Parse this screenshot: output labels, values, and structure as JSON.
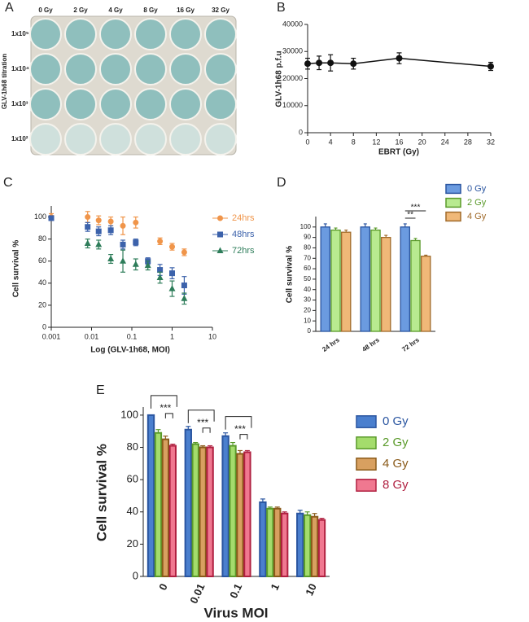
{
  "plate": {
    "panel_label": "A",
    "columns": [
      "0 Gy",
      "2 Gy",
      "4 Gy",
      "8 Gy",
      "16 Gy",
      "32 Gy"
    ],
    "rows": [
      "1x10⁵",
      "1x10⁴",
      "1x10³",
      "1x10²"
    ],
    "side_label": "GLV-1h68 titration"
  },
  "chart_data": [
    {
      "type": "line",
      "panel_label": "B",
      "x": [
        0,
        2,
        4,
        8,
        16,
        32
      ],
      "series": [
        {
          "color": "#111111",
          "values": [
            25500,
            25800,
            25800,
            25500,
            27500,
            24500
          ],
          "errors": [
            2000,
            2500,
            3000,
            2000,
            2000,
            1500
          ]
        }
      ],
      "xlim": [
        0,
        32
      ],
      "xticks": [
        0,
        4,
        8,
        12,
        16,
        20,
        24,
        28,
        32
      ],
      "ylim": [
        0,
        40000
      ],
      "yticks": [
        0,
        10000,
        20000,
        30000,
        40000
      ],
      "xlabel": "EBRT (Gy)",
      "ylabel": "GLV-1h68 p.f.u"
    },
    {
      "type": "scatter",
      "panel_label": "C",
      "xscale": "log",
      "xlim": [
        0.001,
        10
      ],
      "xticks": [
        0.001,
        0.01,
        0.1,
        1,
        10
      ],
      "ylim": [
        0,
        110
      ],
      "yticks": [
        0,
        20,
        40,
        60,
        80,
        100
      ],
      "xlabel": "Log (GLV-1h68, MOI)",
      "ylabel": "Cell survival %",
      "series": [
        {
          "name": "24hrs",
          "color": "#f0954a",
          "marker": "circle",
          "x": [
            0.001,
            0.008,
            0.015,
            0.03,
            0.06,
            0.125,
            0.5,
            1,
            2
          ],
          "values": [
            100,
            100,
            97,
            96,
            92,
            95,
            78,
            73,
            68
          ],
          "errors": [
            3,
            5,
            4,
            4,
            8,
            5,
            3,
            3,
            3
          ]
        },
        {
          "name": "48hrs",
          "color": "#3c62ab",
          "marker": "square",
          "x": [
            0.001,
            0.008,
            0.015,
            0.03,
            0.06,
            0.125,
            0.25,
            0.5,
            1,
            2
          ],
          "values": [
            99,
            91,
            87,
            88,
            75,
            77,
            60,
            52,
            49,
            38
          ],
          "errors": [
            2,
            4,
            4,
            4,
            4,
            3,
            3,
            5,
            5,
            8
          ]
        },
        {
          "name": "72hrs",
          "color": "#2e7d5a",
          "marker": "triangle",
          "x": [
            0.008,
            0.015,
            0.03,
            0.06,
            0.125,
            0.25,
            0.5,
            1,
            2
          ],
          "values": [
            76,
            75,
            62,
            60,
            57,
            56,
            45,
            35,
            26
          ],
          "errors": [
            4,
            4,
            4,
            10,
            5,
            4,
            5,
            7,
            5
          ]
        }
      ]
    },
    {
      "type": "bar",
      "panel_label": "D",
      "categories": [
        "24 hrs",
        "48 hrs",
        "72 hrs"
      ],
      "ylim": [
        0,
        110
      ],
      "yticks": [
        0,
        10,
        20,
        30,
        40,
        50,
        60,
        70,
        80,
        90,
        100
      ],
      "ylabel": "Cell survival %",
      "series": [
        {
          "name": "0 Gy",
          "color": "#6b9be0",
          "edge_color": "#2a55a0",
          "values": [
            100,
            100,
            100
          ],
          "errors": [
            3,
            3,
            3
          ]
        },
        {
          "name": "2 Gy",
          "color": "#b8ea90",
          "edge_color": "#5a9a2a",
          "values": [
            97,
            97,
            87
          ],
          "errors": [
            2,
            2,
            2
          ]
        },
        {
          "name": "4 Gy",
          "color": "#f0b878",
          "edge_color": "#a06a2a",
          "values": [
            95,
            90,
            72
          ],
          "errors": [
            2,
            2,
            1
          ]
        }
      ],
      "annotations": [
        "**",
        "***"
      ]
    },
    {
      "type": "bar",
      "panel_label": "E",
      "categories": [
        "0",
        "0.01",
        "0.1",
        "1",
        "10"
      ],
      "ylim": [
        0,
        105
      ],
      "yticks": [
        0,
        20,
        40,
        60,
        80,
        100
      ],
      "xlabel": "Virus MOI",
      "ylabel": "Cell survival %",
      "series": [
        {
          "name": "0 Gy",
          "color": "#4a7fce",
          "edge_color": "#2a55a0",
          "values": [
            100,
            91,
            87,
            46,
            39
          ],
          "errors": [
            0,
            2,
            2,
            2,
            2
          ]
        },
        {
          "name": "2 Gy",
          "color": "#a4dc6c",
          "edge_color": "#5a9a2a",
          "values": [
            89,
            82,
            81,
            42,
            38
          ],
          "errors": [
            2,
            1,
            2,
            1,
            2
          ]
        },
        {
          "name": "4 Gy",
          "color": "#d8a060",
          "edge_color": "#8a5a1a",
          "values": [
            85,
            80,
            76,
            42,
            37
          ],
          "errors": [
            2,
            1,
            2,
            1,
            2
          ]
        },
        {
          "name": "8 Gy",
          "color": "#f07890",
          "edge_color": "#b02040",
          "values": [
            81,
            80,
            77,
            39,
            35
          ],
          "errors": [
            1,
            1,
            1,
            1,
            1
          ]
        }
      ],
      "annotations": [
        "***",
        "***",
        "***"
      ]
    }
  ]
}
